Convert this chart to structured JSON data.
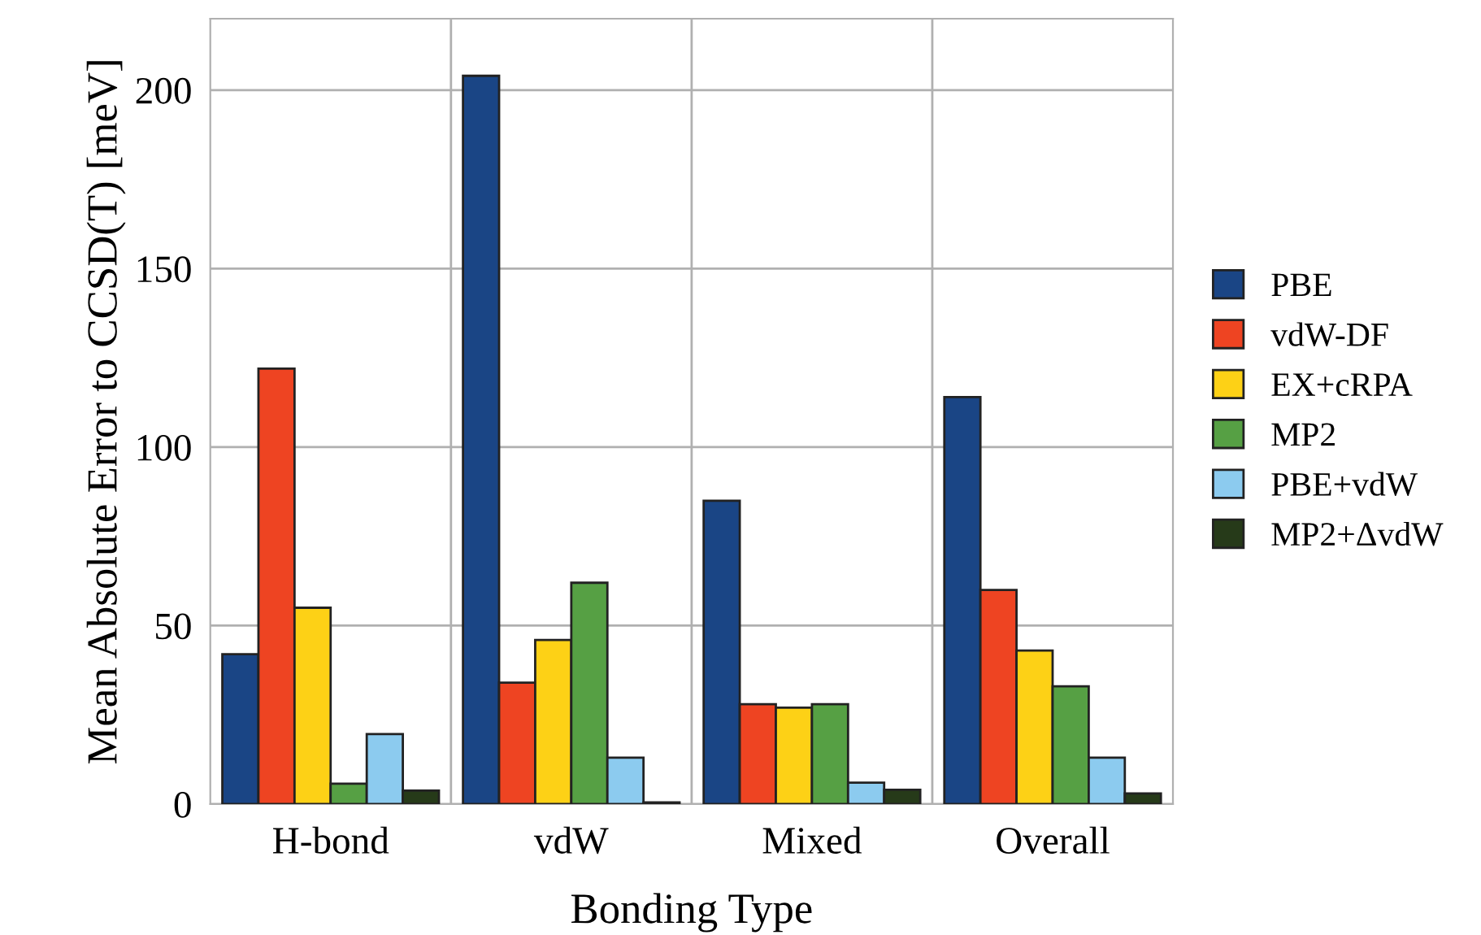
{
  "chart_data": {
    "type": "bar",
    "xlabel": "Bonding Type",
    "ylabel": "Mean Absolute Error to CCSD(T) [meV]",
    "categories": [
      "H-bond",
      "vdW",
      "Mixed",
      "Overall"
    ],
    "series": [
      {
        "name": "PBE",
        "color": "#1a4585",
        "values": [
          42,
          204,
          85,
          114
        ]
      },
      {
        "name": "vdW-DF",
        "color": "#ee4422",
        "values": [
          122,
          34,
          28,
          60
        ]
      },
      {
        "name": "EX+cRPA",
        "color": "#fdd116",
        "values": [
          55,
          46,
          27,
          43
        ]
      },
      {
        "name": "MP2",
        "color": "#56a044",
        "values": [
          5.7,
          62,
          28,
          33
        ]
      },
      {
        "name": "PBE+vdW",
        "color": "#8ccbef",
        "values": [
          19.6,
          13,
          6,
          13
        ]
      },
      {
        "name": "MP2+ΔvdW",
        "color": "#263a19",
        "values": [
          3.8,
          0.5,
          4,
          3
        ]
      }
    ],
    "ylim": [
      0,
      220
    ],
    "yticks": [
      0,
      50,
      100,
      150,
      200
    ],
    "grid": true,
    "legend": "right"
  }
}
